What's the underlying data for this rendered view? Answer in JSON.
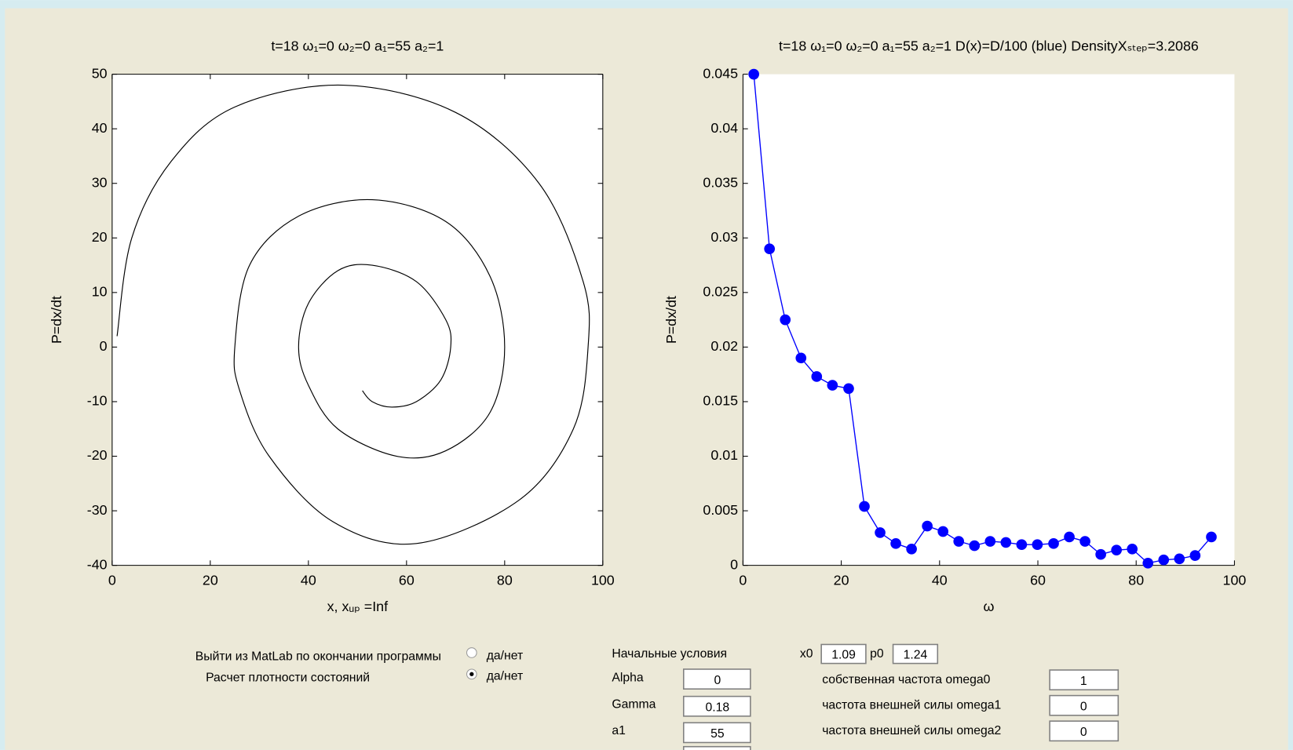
{
  "chart_data": [
    {
      "type": "line",
      "title": "t=18 ω₁=0 ω₂=0 a₁=55 a₂=1",
      "xlabel": "x, xᵤₚ =Inf",
      "ylabel": "P=dx/dt",
      "xlim": [
        0,
        100
      ],
      "ylim": [
        -40,
        50
      ],
      "xticks": [
        0,
        20,
        40,
        60,
        80,
        100
      ],
      "yticks": [
        -40,
        -30,
        -20,
        -10,
        0,
        10,
        20,
        30,
        40,
        50
      ],
      "box": true,
      "marker": false,
      "series": [
        {
          "color": "#000000",
          "x": [
            1,
            4,
            12,
            25,
            47,
            70,
            87,
            96,
            97,
            94,
            83,
            62,
            45,
            32,
            26,
            25,
            28,
            38,
            53,
            68,
            77,
            80,
            77,
            68,
            58,
            46,
            40,
            38,
            40,
            46,
            53,
            62,
            68,
            69,
            67,
            62,
            57,
            53,
            51
          ],
          "values": [
            2,
            20,
            34,
            44,
            48,
            43,
            30,
            12,
            0,
            -15,
            -28,
            -36,
            -32,
            -20,
            -8,
            0,
            15,
            24,
            27,
            23,
            13,
            0,
            -12,
            -19,
            -20,
            -15,
            -7,
            0,
            8,
            14,
            15,
            12,
            5,
            0,
            -6,
            -10,
            -11,
            -10,
            -8
          ]
        }
      ]
    },
    {
      "type": "line",
      "title": "t=18 ω₁=0 ω₂=0 a₁=55 a₂=1 D(x)=D/100 (blue) DensityXₛₜₑₚ=3.2086",
      "xlabel": "ω",
      "ylabel": "P=dx/dt",
      "xlim": [
        0,
        100
      ],
      "ylim": [
        0,
        0.045
      ],
      "xticks": [
        0,
        20,
        40,
        60,
        80,
        100
      ],
      "yticks": [
        0,
        0.005,
        0.01,
        0.015,
        0.02,
        0.025,
        0.03,
        0.035,
        0.04,
        0.045
      ],
      "box": false,
      "marker": true,
      "series": [
        {
          "color": "#0000ff",
          "x": [
            2.2,
            5.4,
            8.6,
            11.8,
            15.0,
            18.2,
            21.5,
            24.7,
            27.9,
            31.1,
            34.3,
            37.5,
            40.7,
            43.9,
            47.1,
            50.3,
            53.5,
            56.7,
            59.9,
            63.2,
            66.4,
            69.6,
            72.8,
            76.0,
            79.2,
            82.4,
            85.6,
            88.8,
            92.0,
            95.3
          ],
          "values": [
            0.045,
            0.029,
            0.0225,
            0.019,
            0.0173,
            0.0165,
            0.0162,
            0.0054,
            0.003,
            0.002,
            0.0015,
            0.0036,
            0.0031,
            0.0022,
            0.0018,
            0.0022,
            0.0021,
            0.0019,
            0.0019,
            0.002,
            0.0026,
            0.0022,
            0.001,
            0.0014,
            0.0015,
            0.0002,
            0.0005,
            0.0006,
            0.0009,
            0.0026
          ]
        }
      ]
    }
  ],
  "controls": {
    "exit_matlab": {
      "label": "Выйти из MatLab по окончании программы",
      "option": "да/нет",
      "checked": false
    },
    "density": {
      "label": "Расчет плотности состояний",
      "option": "да/нет",
      "checked": true
    },
    "initial_conditions": "Начальные условия",
    "alpha": {
      "label": "Alpha",
      "value": "0"
    },
    "gamma": {
      "label": "Gamma",
      "value": "0.18"
    },
    "a1": {
      "label": "a1",
      "value": "55"
    },
    "x0": {
      "label": "x0",
      "value": "1.09"
    },
    "p0": {
      "label": "p0",
      "value": "1.24"
    },
    "omega0": {
      "label": "собственная частота omega0",
      "value": "1"
    },
    "omega1": {
      "label": "частота внешней силы omega1",
      "value": "0"
    },
    "omega2": {
      "label": "частота внешней силы omega2",
      "value": "0"
    }
  }
}
